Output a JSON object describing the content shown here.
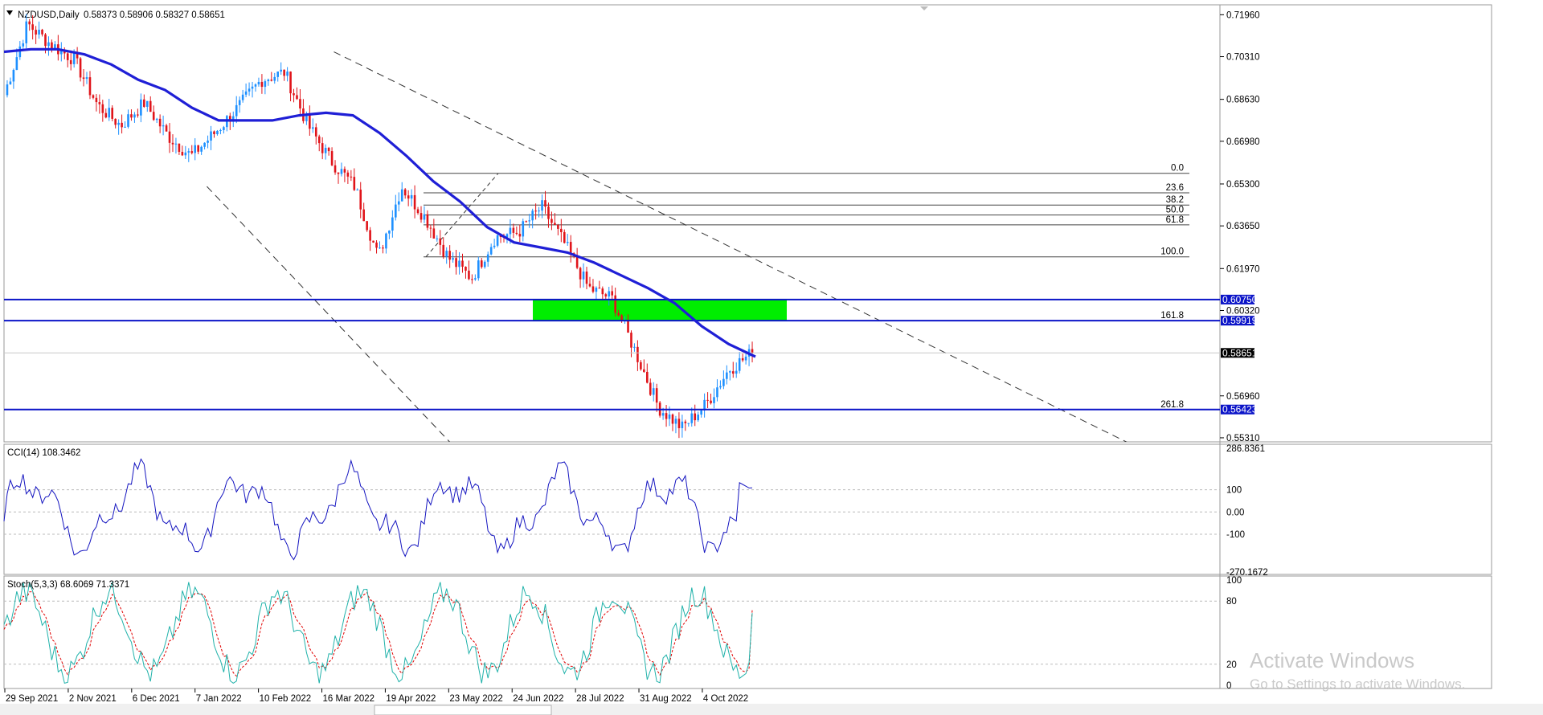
{
  "header": {
    "symbol": "NZDUSD,Daily",
    "ohlc": "0.58373 0.58906 0.58327 0.58651"
  },
  "colors": {
    "bull": "#1e90ff",
    "bear": "#e0141a",
    "ma": "#1f1fd6",
    "level": "#0b14c8",
    "zone": "#00ee00",
    "cci": "#1515c0",
    "stoch_main": "#20b2aa",
    "stoch_signal": "#e00000"
  },
  "chart_data": {
    "type": "candlestick",
    "symbol": "NZDUSD",
    "timeframe": "Daily",
    "last_price": "0.58651",
    "dates": [
      "29 Sep 2021",
      "2 Nov 2021",
      "6 Dec 2021",
      "7 Jan 2022",
      "10 Feb 2022",
      "16 Mar 2022",
      "19 Apr 2022",
      "23 May 2022",
      "24 Jun 2022",
      "28 Jul 2022",
      "31 Aug 2022",
      "4 Oct 2022"
    ],
    "price_axis": {
      "ticks": [
        "0.71960",
        "0.70310",
        "0.68630",
        "0.66980",
        "0.65300",
        "0.63650",
        "0.61970",
        "0.60320",
        "0.56960",
        "0.55310"
      ],
      "ylim": [
        0.5515,
        0.7235
      ]
    },
    "close_path": [
      [
        0,
        0.688
      ],
      [
        1,
        0.716
      ],
      [
        2,
        0.708
      ],
      [
        3,
        0.702
      ],
      [
        4,
        0.684
      ],
      [
        5,
        0.676
      ],
      [
        6,
        0.685
      ],
      [
        7,
        0.672
      ],
      [
        8,
        0.664
      ],
      [
        9,
        0.673
      ],
      [
        10,
        0.683
      ],
      [
        11,
        0.694
      ],
      [
        12,
        0.697
      ],
      [
        13,
        0.676
      ],
      [
        14,
        0.662
      ],
      [
        15,
        0.652
      ],
      [
        16,
        0.624
      ],
      [
        17,
        0.652
      ],
      [
        18,
        0.64
      ],
      [
        19,
        0.624
      ],
      [
        20,
        0.616
      ],
      [
        21,
        0.632
      ],
      [
        22,
        0.634
      ],
      [
        23,
        0.644
      ],
      [
        24,
        0.629
      ],
      [
        25,
        0.612
      ],
      [
        26,
        0.608
      ],
      [
        27,
        0.587
      ],
      [
        28,
        0.565
      ],
      [
        29,
        0.557
      ],
      [
        30,
        0.566
      ],
      [
        31,
        0.58
      ],
      [
        32,
        0.5865
      ]
    ],
    "moving_average": [
      [
        0,
        0.705
      ],
      [
        1,
        0.706
      ],
      [
        2,
        0.706
      ],
      [
        3,
        0.704
      ],
      [
        4,
        0.7
      ],
      [
        5,
        0.694
      ],
      [
        6,
        0.69
      ],
      [
        7,
        0.683
      ],
      [
        8,
        0.678
      ],
      [
        9,
        0.678
      ],
      [
        10,
        0.678
      ],
      [
        11,
        0.68
      ],
      [
        12,
        0.681
      ],
      [
        13,
        0.68
      ],
      [
        14,
        0.673
      ],
      [
        15,
        0.664
      ],
      [
        16,
        0.654
      ],
      [
        17,
        0.646
      ],
      [
        18,
        0.636
      ],
      [
        19,
        0.63
      ],
      [
        20,
        0.628
      ],
      [
        21,
        0.626
      ],
      [
        22,
        0.622
      ],
      [
        23,
        0.617
      ],
      [
        24,
        0.612
      ],
      [
        25,
        0.606
      ],
      [
        26,
        0.597
      ],
      [
        27,
        0.59
      ],
      [
        28,
        0.585
      ]
    ],
    "trend_channel": {
      "upper": [
        [
          0.439,
          0.705
        ],
        [
          1.0,
          0.564
        ]
      ],
      "lower": [
        [
          0.27,
          0.652
        ],
        [
          0.593,
          0.5515
        ]
      ]
    },
    "horizontal_levels": [
      {
        "price": "0.60750",
        "label": "0.60750"
      },
      {
        "price": "0.59919",
        "label": "0.59919"
      },
      {
        "price": "0.56423",
        "label": "0.56423"
      }
    ],
    "fibonacci": {
      "high": 0.6572,
      "low": 0.6243,
      "levels": [
        {
          "label": "0.0",
          "price": 0.6572
        },
        {
          "label": "23.6",
          "price": 0.6495
        },
        {
          "label": "38.2",
          "price": 0.6447
        },
        {
          "label": "50.0",
          "price": 0.6408
        },
        {
          "label": "61.8",
          "price": 0.6369
        },
        {
          "label": "100.0",
          "price": 0.6243
        },
        {
          "label": "161.8",
          "price": 0.5992
        },
        {
          "label": "261.8",
          "price": 0.5642
        }
      ]
    },
    "zone": {
      "from_price": 0.5992,
      "to_price": 0.6075
    },
    "cci": {
      "label": "CCI(14) 108.3462",
      "ticks": [
        "286.8361",
        "100",
        "0.00",
        "-100",
        "-270.1672"
      ],
      "ylim": [
        -270.1672,
        286.8361
      ],
      "last": 108.3462
    },
    "stochastic": {
      "label": "Stoch(5,3,3) 68.6069 71.3371",
      "ticks": [
        "100",
        "80",
        "20",
        "0"
      ],
      "ylim": [
        0,
        100
      ],
      "main": 68.6069,
      "signal": 71.3371
    }
  },
  "watermark": {
    "line1": "Activate Windows",
    "line2": "Go to Settings to activate Windows."
  }
}
